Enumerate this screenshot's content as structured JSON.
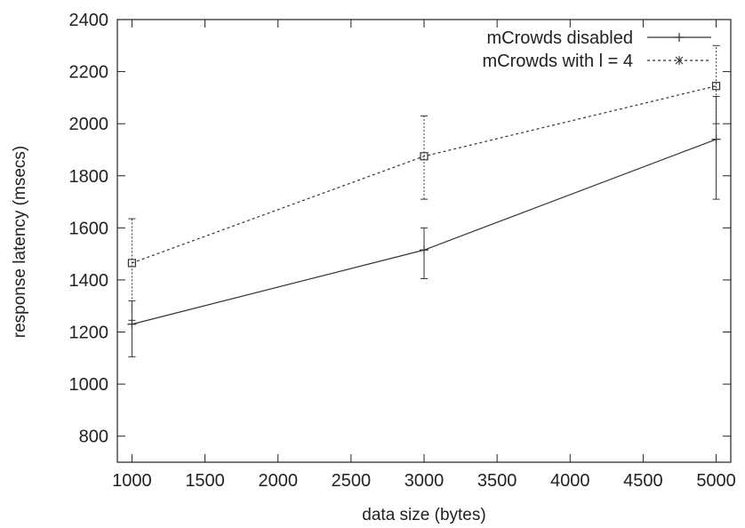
{
  "chart_data": {
    "type": "line",
    "xlabel": "data size (bytes)",
    "ylabel": "response latency (msecs)",
    "xlim": [
      900,
      5100
    ],
    "ylim": [
      700,
      2400
    ],
    "xticks": [
      1000,
      1500,
      2000,
      2500,
      3000,
      3500,
      4000,
      4500,
      5000
    ],
    "yticks": [
      800,
      1000,
      1200,
      1400,
      1600,
      1800,
      2000,
      2200,
      2400
    ],
    "grid": false,
    "legend_position": "top-right",
    "series": [
      {
        "name": "mCrowds disabled",
        "style": "solid",
        "marker": "plus",
        "color": "#333333",
        "x": [
          1000,
          3000,
          5000
        ],
        "y": [
          1230,
          1515,
          1940
        ],
        "err_low": [
          1105,
          1405,
          1710
        ],
        "err_high": [
          1320,
          1600,
          2105
        ]
      },
      {
        "name": "mCrowds with l = 4",
        "style": "dotted",
        "marker": "square",
        "color": "#333333",
        "x": [
          1000,
          3000,
          5000
        ],
        "y": [
          1465,
          1875,
          2145
        ],
        "err_low": [
          1245,
          1710,
          2000
        ],
        "err_high": [
          1635,
          2030,
          2300
        ]
      }
    ]
  }
}
